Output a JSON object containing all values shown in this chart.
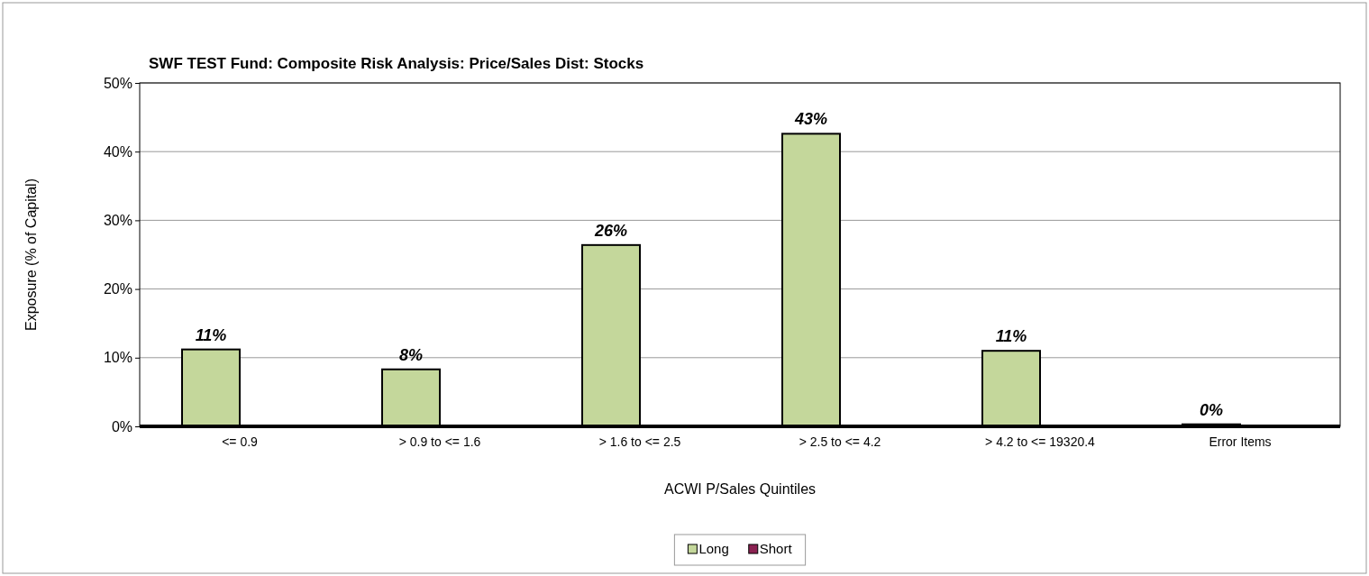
{
  "chart_data": {
    "type": "bar",
    "title": "SWF TEST Fund: Composite Risk Analysis: Price/Sales Dist: Stocks",
    "xlabel": "ACWI P/Sales Quintiles",
    "ylabel": "Exposure (% of Capital)",
    "categories": [
      "<= 0.9",
      "> 0.9 to <= 1.6",
      "> 1.6 to <= 2.5",
      "> 2.5 to <= 4.2",
      "> 4.2 to <= 19320.4",
      "Error Items"
    ],
    "series": [
      {
        "name": "Long",
        "color": "#c4d79b",
        "values": [
          11.2,
          8.3,
          26.4,
          42.6,
          11.0,
          0.3
        ],
        "value_labels": [
          "11%",
          "8%",
          "26%",
          "43%",
          "11%",
          "0%"
        ]
      },
      {
        "name": "Short",
        "color": "#8b2252",
        "values": [
          0,
          0,
          0,
          0,
          0,
          0
        ]
      }
    ],
    "ylim": [
      0,
      50
    ],
    "yticks": [
      {
        "value": 0,
        "label": "0%"
      },
      {
        "value": 10,
        "label": "10%"
      },
      {
        "value": 20,
        "label": "20%"
      },
      {
        "value": 30,
        "label": "30%"
      },
      {
        "value": 40,
        "label": "40%"
      },
      {
        "value": 50,
        "label": "50%"
      }
    ],
    "grid": "y",
    "legend": "bottom"
  }
}
